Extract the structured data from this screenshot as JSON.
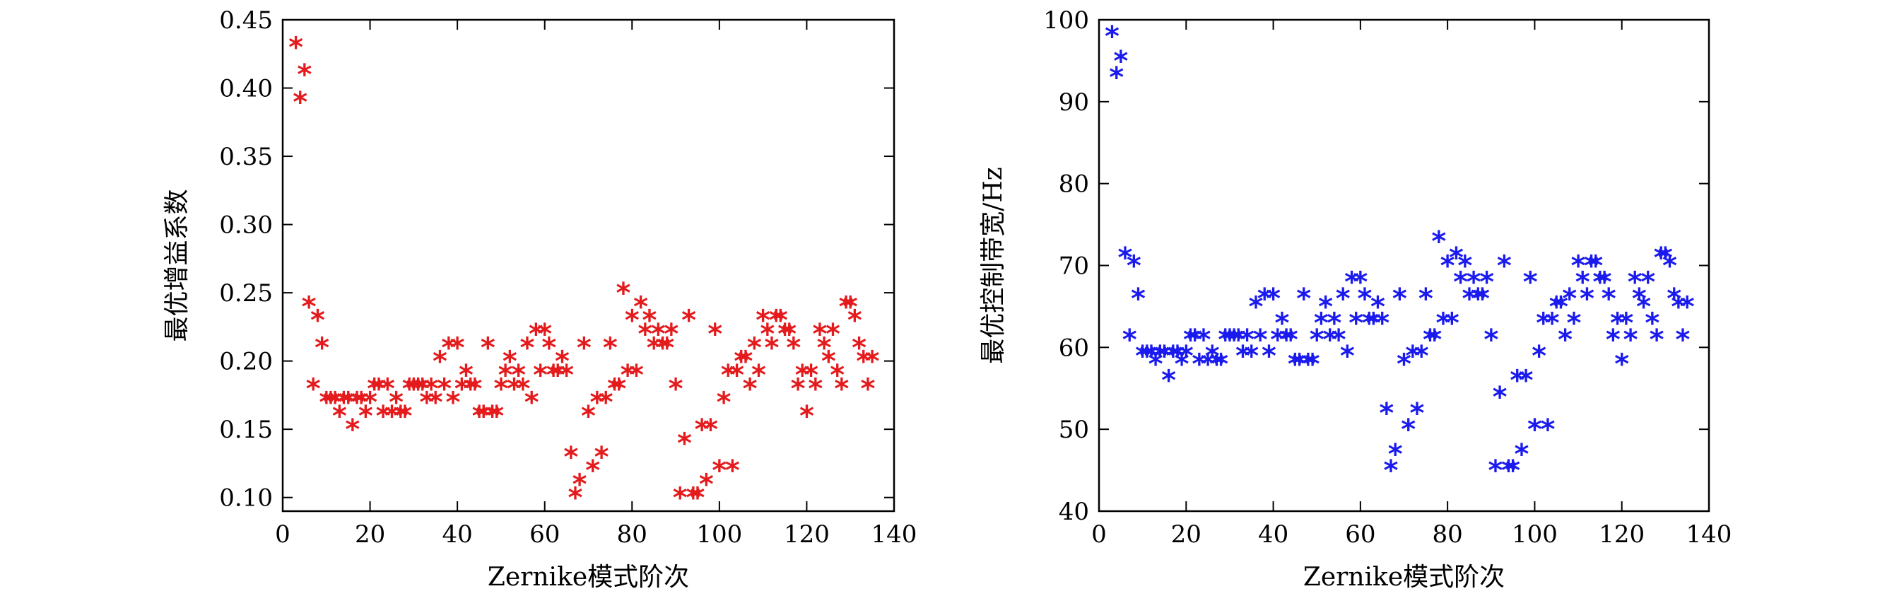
{
  "chart_data": [
    {
      "type": "scatter",
      "xlabel": "Zernike模式阶次",
      "ylabel": "最优增益系数",
      "xlim": [
        0,
        140
      ],
      "ylim": [
        0.09,
        0.45
      ],
      "xticks": [
        0,
        20,
        40,
        60,
        80,
        100,
        120,
        140
      ],
      "xtick_labels": [
        "0",
        "20",
        "40",
        "60",
        "80",
        "100",
        "120",
        "140"
      ],
      "yticks": [
        0.1,
        0.15,
        0.2,
        0.25,
        0.3,
        0.35,
        0.4,
        0.45
      ],
      "ytick_labels": [
        "0.10",
        "0.15",
        "0.20",
        "0.25",
        "0.30",
        "0.35",
        "0.40",
        "0.45"
      ],
      "marker": "*",
      "color": "#e41a1c",
      "points": [
        [
          3,
          0.43
        ],
        [
          4,
          0.39
        ],
        [
          5,
          0.41
        ],
        [
          6,
          0.24
        ],
        [
          7,
          0.18
        ],
        [
          8,
          0.23
        ],
        [
          9,
          0.21
        ],
        [
          10,
          0.17
        ],
        [
          11,
          0.17
        ],
        [
          12,
          0.17
        ],
        [
          13,
          0.16
        ],
        [
          14,
          0.17
        ],
        [
          15,
          0.17
        ],
        [
          16,
          0.15
        ],
        [
          17,
          0.17
        ],
        [
          18,
          0.17
        ],
        [
          19,
          0.16
        ],
        [
          20,
          0.17
        ],
        [
          21,
          0.18
        ],
        [
          22,
          0.18
        ],
        [
          23,
          0.16
        ],
        [
          24,
          0.18
        ],
        [
          25,
          0.16
        ],
        [
          26,
          0.17
        ],
        [
          27,
          0.16
        ],
        [
          28,
          0.16
        ],
        [
          29,
          0.18
        ],
        [
          30,
          0.18
        ],
        [
          31,
          0.18
        ],
        [
          32,
          0.18
        ],
        [
          33,
          0.17
        ],
        [
          34,
          0.18
        ],
        [
          35,
          0.17
        ],
        [
          36,
          0.2
        ],
        [
          37,
          0.18
        ],
        [
          38,
          0.21
        ],
        [
          39,
          0.17
        ],
        [
          40,
          0.21
        ],
        [
          41,
          0.18
        ],
        [
          42,
          0.19
        ],
        [
          43,
          0.18
        ],
        [
          44,
          0.18
        ],
        [
          45,
          0.16
        ],
        [
          46,
          0.16
        ],
        [
          47,
          0.21
        ],
        [
          48,
          0.16
        ],
        [
          49,
          0.16
        ],
        [
          50,
          0.18
        ],
        [
          51,
          0.19
        ],
        [
          52,
          0.2
        ],
        [
          53,
          0.18
        ],
        [
          54,
          0.19
        ],
        [
          55,
          0.18
        ],
        [
          56,
          0.21
        ],
        [
          57,
          0.17
        ],
        [
          58,
          0.22
        ],
        [
          59,
          0.19
        ],
        [
          60,
          0.22
        ],
        [
          61,
          0.21
        ],
        [
          62,
          0.19
        ],
        [
          63,
          0.19
        ],
        [
          64,
          0.2
        ],
        [
          65,
          0.19
        ],
        [
          66,
          0.13
        ],
        [
          67,
          0.1
        ],
        [
          68,
          0.11
        ],
        [
          69,
          0.21
        ],
        [
          70,
          0.16
        ],
        [
          71,
          0.12
        ],
        [
          72,
          0.17
        ],
        [
          73,
          0.13
        ],
        [
          74,
          0.17
        ],
        [
          75,
          0.21
        ],
        [
          76,
          0.18
        ],
        [
          77,
          0.18
        ],
        [
          78,
          0.25
        ],
        [
          79,
          0.19
        ],
        [
          80,
          0.23
        ],
        [
          81,
          0.19
        ],
        [
          82,
          0.24
        ],
        [
          83,
          0.22
        ],
        [
          84,
          0.23
        ],
        [
          85,
          0.21
        ],
        [
          86,
          0.22
        ],
        [
          87,
          0.21
        ],
        [
          88,
          0.21
        ],
        [
          89,
          0.22
        ],
        [
          90,
          0.18
        ],
        [
          91,
          0.1
        ],
        [
          92,
          0.14
        ],
        [
          93,
          0.23
        ],
        [
          94,
          0.1
        ],
        [
          95,
          0.1
        ],
        [
          96,
          0.15
        ],
        [
          97,
          0.11
        ],
        [
          98,
          0.15
        ],
        [
          99,
          0.22
        ],
        [
          100,
          0.12
        ],
        [
          101,
          0.17
        ],
        [
          102,
          0.19
        ],
        [
          103,
          0.12
        ],
        [
          104,
          0.19
        ],
        [
          105,
          0.2
        ],
        [
          106,
          0.2
        ],
        [
          107,
          0.18
        ],
        [
          108,
          0.21
        ],
        [
          109,
          0.19
        ],
        [
          110,
          0.23
        ],
        [
          111,
          0.22
        ],
        [
          112,
          0.21
        ],
        [
          113,
          0.23
        ],
        [
          114,
          0.23
        ],
        [
          115,
          0.22
        ],
        [
          116,
          0.22
        ],
        [
          117,
          0.21
        ],
        [
          118,
          0.18
        ],
        [
          119,
          0.19
        ],
        [
          120,
          0.16
        ],
        [
          121,
          0.19
        ],
        [
          122,
          0.18
        ],
        [
          123,
          0.22
        ],
        [
          124,
          0.21
        ],
        [
          125,
          0.2
        ],
        [
          126,
          0.22
        ],
        [
          127,
          0.19
        ],
        [
          128,
          0.18
        ],
        [
          129,
          0.24
        ],
        [
          130,
          0.24
        ],
        [
          131,
          0.23
        ],
        [
          132,
          0.21
        ],
        [
          133,
          0.2
        ],
        [
          134,
          0.18
        ],
        [
          135,
          0.2
        ]
      ]
    },
    {
      "type": "scatter",
      "xlabel": "Zernike模式阶次",
      "ylabel": "最优控制带宽/Hz",
      "xlim": [
        0,
        140
      ],
      "ylim": [
        40,
        100
      ],
      "xticks": [
        0,
        20,
        40,
        60,
        80,
        100,
        120,
        140
      ],
      "xtick_labels": [
        "0",
        "20",
        "40",
        "60",
        "80",
        "100",
        "120",
        "140"
      ],
      "yticks": [
        40,
        50,
        60,
        70,
        80,
        90,
        100
      ],
      "ytick_labels": [
        "40",
        "50",
        "60",
        "70",
        "80",
        "90",
        "100"
      ],
      "marker": "*",
      "color": "#1a1aee",
      "points": [
        [
          3,
          98
        ],
        [
          4,
          93
        ],
        [
          5,
          95
        ],
        [
          6,
          71
        ],
        [
          7,
          61
        ],
        [
          8,
          70
        ],
        [
          9,
          66
        ],
        [
          10,
          59
        ],
        [
          11,
          59
        ],
        [
          12,
          59
        ],
        [
          13,
          58
        ],
        [
          14,
          59
        ],
        [
          15,
          59
        ],
        [
          16,
          56
        ],
        [
          17,
          59
        ],
        [
          18,
          59
        ],
        [
          19,
          58
        ],
        [
          20,
          59
        ],
        [
          21,
          61
        ],
        [
          22,
          61
        ],
        [
          23,
          58
        ],
        [
          24,
          61
        ],
        [
          25,
          58
        ],
        [
          26,
          59
        ],
        [
          27,
          58
        ],
        [
          28,
          58
        ],
        [
          29,
          61
        ],
        [
          30,
          61
        ],
        [
          31,
          61
        ],
        [
          32,
          61
        ],
        [
          33,
          59
        ],
        [
          34,
          61
        ],
        [
          35,
          59
        ],
        [
          36,
          65
        ],
        [
          37,
          61
        ],
        [
          38,
          66
        ],
        [
          39,
          59
        ],
        [
          40,
          66
        ],
        [
          41,
          61
        ],
        [
          42,
          63
        ],
        [
          43,
          61
        ],
        [
          44,
          61
        ],
        [
          45,
          58
        ],
        [
          46,
          58
        ],
        [
          47,
          66
        ],
        [
          48,
          58
        ],
        [
          49,
          58
        ],
        [
          50,
          61
        ],
        [
          51,
          63
        ],
        [
          52,
          65
        ],
        [
          53,
          61
        ],
        [
          54,
          63
        ],
        [
          55,
          61
        ],
        [
          56,
          66
        ],
        [
          57,
          59
        ],
        [
          58,
          68
        ],
        [
          59,
          63
        ],
        [
          60,
          68
        ],
        [
          61,
          66
        ],
        [
          62,
          63
        ],
        [
          63,
          63
        ],
        [
          64,
          65
        ],
        [
          65,
          63
        ],
        [
          66,
          52
        ],
        [
          67,
          45
        ],
        [
          68,
          47
        ],
        [
          69,
          66
        ],
        [
          70,
          58
        ],
        [
          71,
          50
        ],
        [
          72,
          59
        ],
        [
          73,
          52
        ],
        [
          74,
          59
        ],
        [
          75,
          66
        ],
        [
          76,
          61
        ],
        [
          77,
          61
        ],
        [
          78,
          73
        ],
        [
          79,
          63
        ],
        [
          80,
          70
        ],
        [
          81,
          63
        ],
        [
          82,
          71
        ],
        [
          83,
          68
        ],
        [
          84,
          70
        ],
        [
          85,
          66
        ],
        [
          86,
          68
        ],
        [
          87,
          66
        ],
        [
          88,
          66
        ],
        [
          89,
          68
        ],
        [
          90,
          61
        ],
        [
          91,
          45
        ],
        [
          92,
          54
        ],
        [
          93,
          70
        ],
        [
          94,
          45
        ],
        [
          95,
          45
        ],
        [
          96,
          56
        ],
        [
          97,
          47
        ],
        [
          98,
          56
        ],
        [
          99,
          68
        ],
        [
          100,
          50
        ],
        [
          101,
          59
        ],
        [
          102,
          63
        ],
        [
          103,
          50
        ],
        [
          104,
          63
        ],
        [
          105,
          65
        ],
        [
          106,
          65
        ],
        [
          107,
          61
        ],
        [
          108,
          66
        ],
        [
          109,
          63
        ],
        [
          110,
          70
        ],
        [
          111,
          68
        ],
        [
          112,
          66
        ],
        [
          113,
          70
        ],
        [
          114,
          70
        ],
        [
          115,
          68
        ],
        [
          116,
          68
        ],
        [
          117,
          66
        ],
        [
          118,
          61
        ],
        [
          119,
          63
        ],
        [
          120,
          58
        ],
        [
          121,
          63
        ],
        [
          122,
          61
        ],
        [
          123,
          68
        ],
        [
          124,
          66
        ],
        [
          125,
          65
        ],
        [
          126,
          68
        ],
        [
          127,
          63
        ],
        [
          128,
          61
        ],
        [
          129,
          71
        ],
        [
          130,
          71
        ],
        [
          131,
          70
        ],
        [
          132,
          66
        ],
        [
          133,
          65
        ],
        [
          134,
          61
        ],
        [
          135,
          65
        ]
      ]
    }
  ]
}
